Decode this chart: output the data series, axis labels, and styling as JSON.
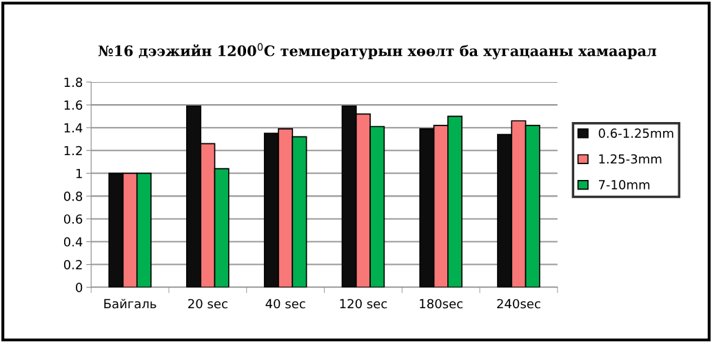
{
  "chart_data": {
    "type": "bar",
    "title": "№16 дээжийн 1200$^{0}$C температурын хөөлт ба хугацааны хамаарал",
    "categories": [
      "Байгаль",
      "20 sec",
      "40 sec",
      "120 sec",
      "180sec",
      "240sec"
    ],
    "series": [
      {
        "name": "0.6-1.25mm",
        "color": "#0d0d0d",
        "values": [
          1,
          1.59,
          1.35,
          1.59,
          1.39,
          1.34
        ]
      },
      {
        "name": "1.25-3mm",
        "color": "#f87878",
        "values": [
          1,
          1.26,
          1.39,
          1.52,
          1.42,
          1.46
        ]
      },
      {
        "name": "7-10mm",
        "color": "#00b050",
        "values": [
          1,
          1.04,
          1.32,
          1.41,
          1.5,
          1.42
        ]
      }
    ],
    "ylim": [
      0,
      1.8
    ],
    "yticks": [
      0,
      0.2,
      0.4,
      0.6,
      0.8,
      1,
      1.2,
      1.4,
      1.6,
      1.8
    ],
    "grid": "y",
    "legend": "right"
  }
}
